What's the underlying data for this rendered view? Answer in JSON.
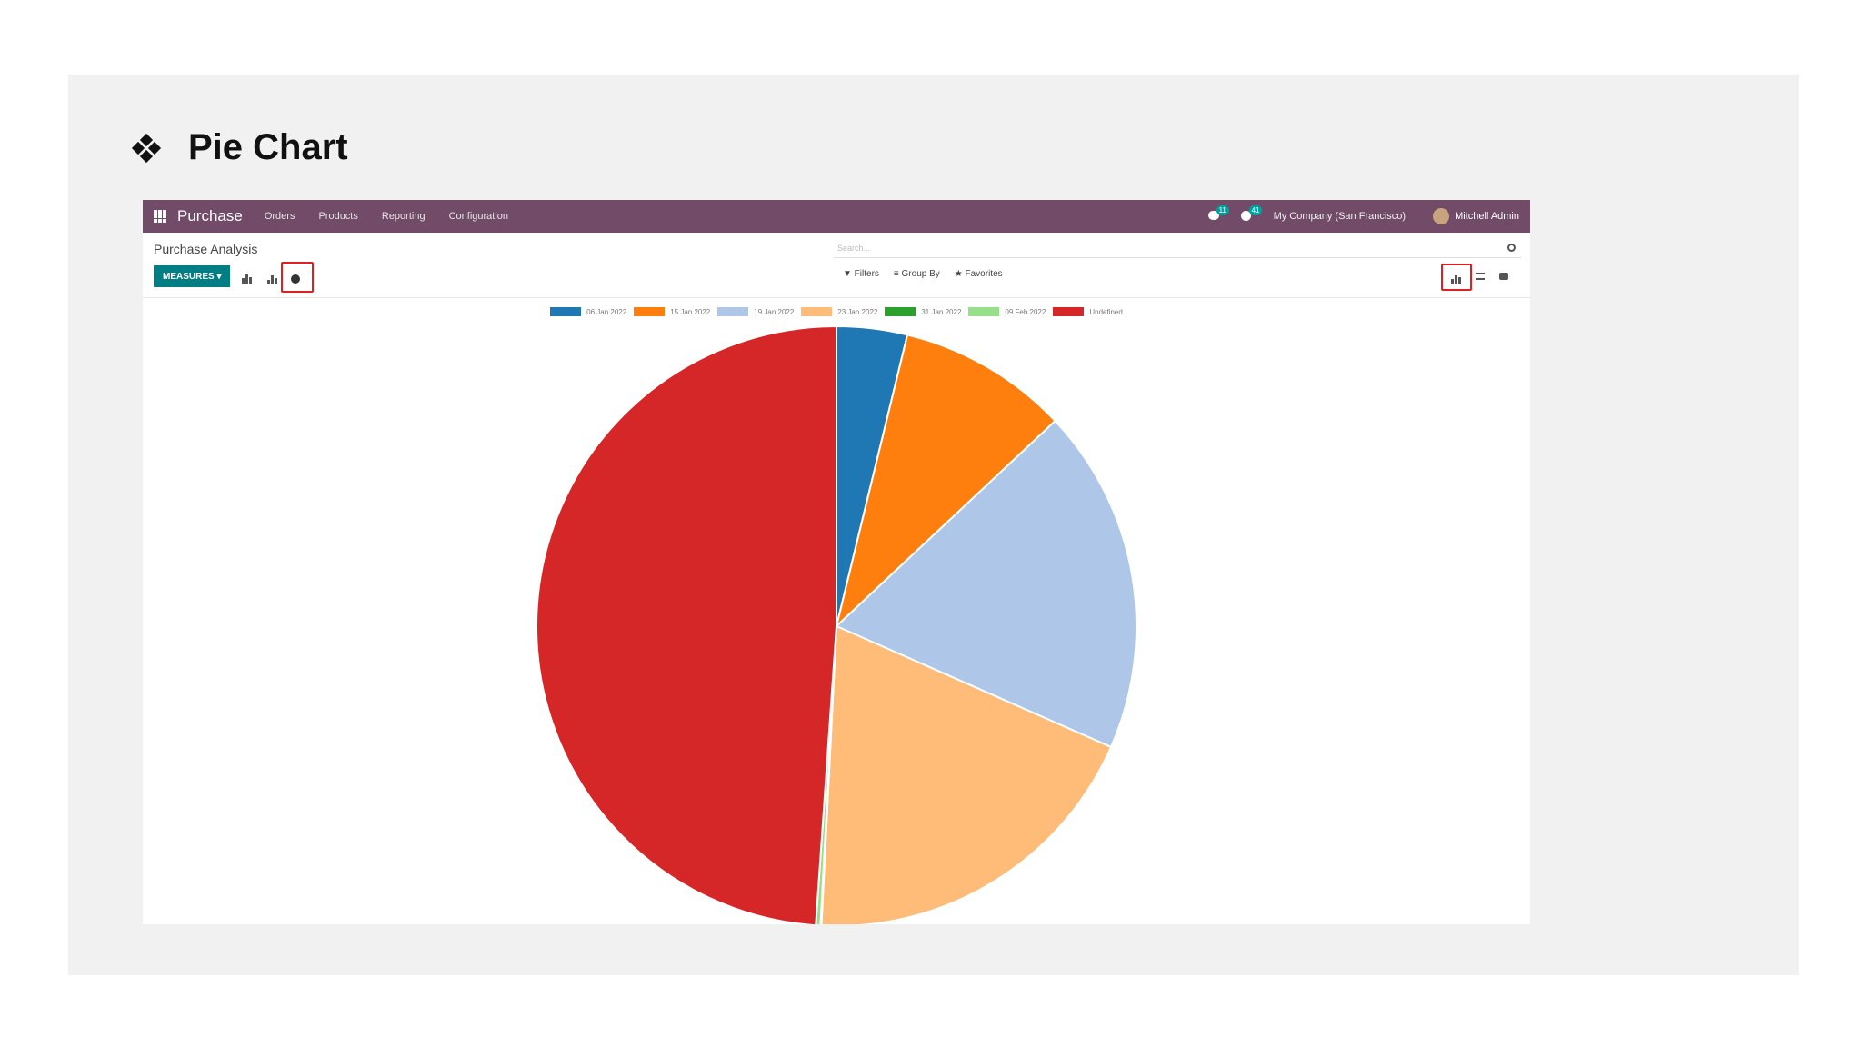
{
  "slide": {
    "title": "Pie Chart",
    "bullet_icon": "four-diamond-bullet-icon"
  },
  "navbar": {
    "brand": "Purchase",
    "menu": [
      "Orders",
      "Products",
      "Reporting",
      "Configuration"
    ],
    "messages_count": "11",
    "activities_count": "41",
    "company": "My Company (San Francisco)",
    "user": "Mitchell Admin"
  },
  "control_panel": {
    "breadcrumb": "Purchase Analysis",
    "search_placeholder": "Search...",
    "measures_label": "MEASURES ▾",
    "filters_label": "▼ Filters",
    "group_by_label": "≡ Group By",
    "favorites_label": "★ Favorites"
  },
  "chart_data": {
    "type": "pie",
    "categories": [
      "06 Jan 2022",
      "15 Jan 2022",
      "19 Jan 2022",
      "23 Jan 2022",
      "31 Jan 2022",
      "09 Feb 2022",
      "Undefined"
    ],
    "values": [
      3.8,
      9.2,
      18.6,
      19.2,
      0.05,
      0.25,
      48.9
    ],
    "colors": [
      "#1f77b4",
      "#ff7f0e",
      "#aec7e8",
      "#ffbb78",
      "#2ca02c",
      "#98df8a",
      "#d62728"
    ],
    "legend_position": "top"
  }
}
